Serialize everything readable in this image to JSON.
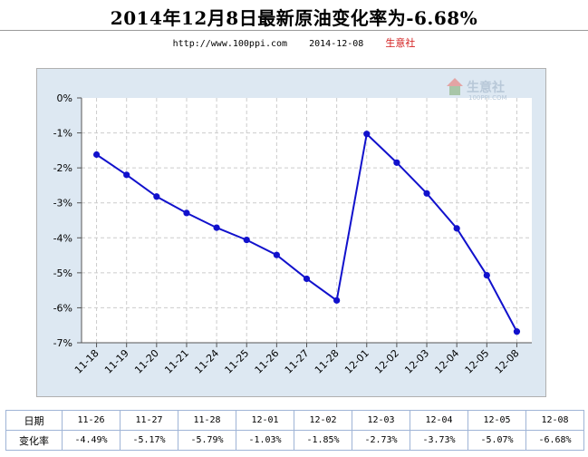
{
  "title": "2014年12月8日最新原油变化率为-6.68%",
  "subline": {
    "url": "http://www.100ppi.com",
    "date": "2014-12-08",
    "brand": "生意社"
  },
  "watermark": {
    "name": "生意社",
    "url": "100PPI.COM"
  },
  "colors": {
    "line": "#1111cc",
    "plot_bg": "#ffffff",
    "frame_bg": "#dde8f2",
    "grid": "#cccccc",
    "brand": "#d21a1a"
  },
  "chart_data": {
    "type": "line",
    "x": [
      "11-18",
      "11-19",
      "11-20",
      "11-21",
      "11-24",
      "11-25",
      "11-26",
      "11-27",
      "11-28",
      "12-01",
      "12-02",
      "12-03",
      "12-04",
      "12-05",
      "12-08"
    ],
    "series": [
      {
        "values": [
          -1.62,
          -2.2,
          -2.82,
          -3.29,
          -3.71,
          -4.06,
          -4.49,
          -5.17,
          -5.79,
          -1.03,
          -1.85,
          -2.73,
          -3.73,
          -5.07,
          -6.68
        ]
      }
    ],
    "yticks": [
      "0%",
      "-1%",
      "-2%",
      "-3%",
      "-4%",
      "-5%",
      "-6%",
      "-7%"
    ],
    "ylim": [
      -7,
      0
    ],
    "grid": true,
    "title": "",
    "xlabel": "",
    "ylabel": ""
  },
  "table": {
    "row_headers": [
      "日期",
      "变化率"
    ],
    "dates": [
      "11-26",
      "11-27",
      "11-28",
      "12-01",
      "12-02",
      "12-03",
      "12-04",
      "12-05",
      "12-08"
    ],
    "rates": [
      "-4.49%",
      "-5.17%",
      "-5.79%",
      "-1.03%",
      "-1.85%",
      "-2.73%",
      "-3.73%",
      "-5.07%",
      "-6.68%"
    ]
  }
}
